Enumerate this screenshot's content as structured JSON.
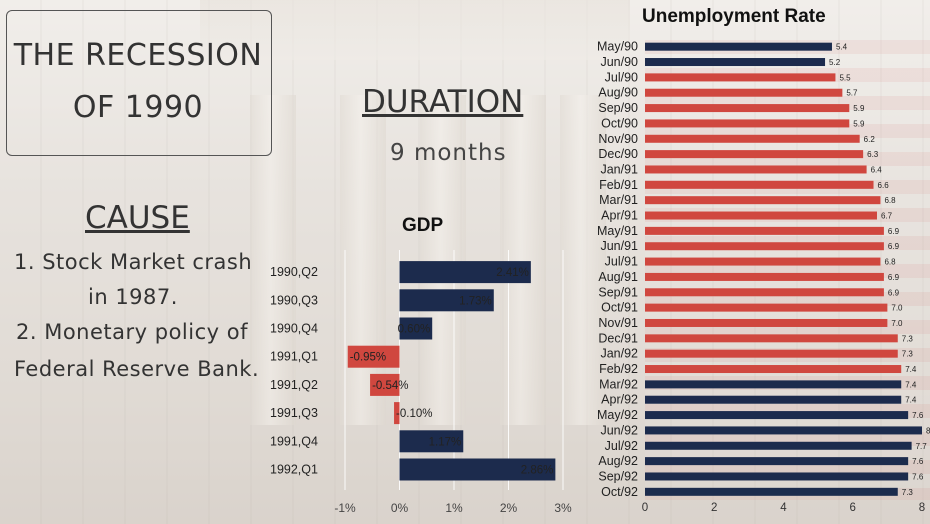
{
  "page": {
    "title_line1": "THE RECESSION",
    "title_line2": "OF 1990",
    "duration_heading": "DURATION",
    "duration_value": "9 months",
    "cause_heading": "CAUSE",
    "cause_lines": [
      "1. Stock Market crash",
      "in 1987.",
      "2. Monetary policy of",
      "Federal Reserve Bank."
    ]
  },
  "colors": {
    "navy": "#1c2b4d",
    "red": "#d0473f"
  },
  "chart_data": [
    {
      "type": "bar",
      "orientation": "horizontal",
      "title": "GDP",
      "categories": [
        "1990,Q2",
        "1990,Q3",
        "1990,Q4",
        "1991,Q1",
        "1991,Q2",
        "1991,Q3",
        "1991,Q4",
        "1992,Q1"
      ],
      "values": [
        2.41,
        1.73,
        0.6,
        -0.95,
        -0.54,
        -0.1,
        1.17,
        2.86
      ],
      "labels": [
        "2.41%",
        "1.73%",
        "0.60%",
        "-0.95%",
        "-0.54%",
        "-0.10%",
        "1.17%",
        "2.86%"
      ],
      "xlim": [
        -1,
        3
      ],
      "xticks": [
        -1,
        0,
        1,
        2,
        3
      ],
      "xtick_labels": [
        "-1%",
        "0%",
        "1%",
        "2%",
        "3%"
      ],
      "grid": true,
      "colors": [
        "navy",
        "navy",
        "navy",
        "red",
        "red",
        "red",
        "navy",
        "navy"
      ]
    },
    {
      "type": "bar",
      "orientation": "horizontal",
      "title": "Unemployment Rate",
      "categories": [
        "May/90",
        "Jun/90",
        "Jul/90",
        "Aug/90",
        "Sep/90",
        "Oct/90",
        "Nov/90",
        "Dec/90",
        "Jan/91",
        "Feb/91",
        "Mar/91",
        "Apr/91",
        "May/91",
        "Jun/91",
        "Jul/91",
        "Aug/91",
        "Sep/91",
        "Oct/91",
        "Nov/91",
        "Dec/91",
        "Jan/92",
        "Feb/92",
        "Mar/92",
        "Apr/92",
        "May/92",
        "Jun/92",
        "Jul/92",
        "Aug/92",
        "Sep/92",
        "Oct/92"
      ],
      "values": [
        5.4,
        5.2,
        5.5,
        5.7,
        5.9,
        5.9,
        6.2,
        6.3,
        6.4,
        6.6,
        6.8,
        6.7,
        6.9,
        6.9,
        6.8,
        6.9,
        6.9,
        7.0,
        7.0,
        7.3,
        7.3,
        7.4,
        7.4,
        7.4,
        7.6,
        8,
        7.7,
        7.6,
        7.6,
        7.3
      ],
      "labels": [
        "5.4",
        "5.2",
        "5.5",
        "5.7",
        "5.9",
        "5.9",
        "6.2",
        "6.3",
        "6.4",
        "6.6",
        "6.8",
        "6.7",
        "6.9",
        "6.9",
        "6.8",
        "6.9",
        "6.9",
        "7.0",
        "7.0",
        "7.3",
        "7.3",
        "7.4",
        "7.4",
        "7.4",
        "7.6",
        "8",
        "7.7",
        "7.6",
        "7.6",
        "7.3"
      ],
      "xlim": [
        0,
        8
      ],
      "xticks": [
        0,
        2,
        4,
        6,
        8
      ],
      "xtick_labels": [
        "0",
        "2",
        "4",
        "6",
        "8"
      ],
      "grid": false,
      "colors": [
        "navy",
        "navy",
        "red",
        "red",
        "red",
        "red",
        "red",
        "red",
        "red",
        "red",
        "red",
        "red",
        "red",
        "red",
        "red",
        "red",
        "red",
        "red",
        "red",
        "red",
        "red",
        "red",
        "navy",
        "navy",
        "navy",
        "navy",
        "navy",
        "navy",
        "navy",
        "navy"
      ]
    }
  ]
}
